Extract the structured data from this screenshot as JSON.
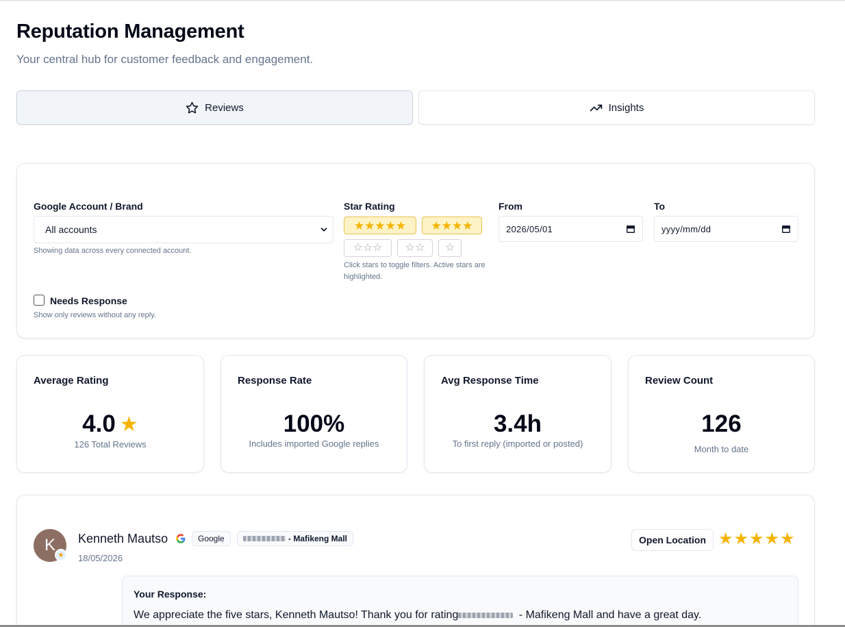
{
  "header": {
    "title": "Reputation Management",
    "subtitle": "Your central hub for customer feedback and engagement."
  },
  "tabs": [
    {
      "label": "Reviews",
      "icon": "star-outline-icon",
      "active": true
    },
    {
      "label": "Insights",
      "icon": "trending-up-icon",
      "active": false
    }
  ],
  "filters": {
    "account_label": "Google Account / Brand",
    "account_value": "All accounts",
    "account_help": "Showing data across every connected account.",
    "star_label": "Star Rating",
    "star_options": [
      {
        "stars": 5,
        "active": true
      },
      {
        "stars": 4,
        "active": true
      },
      {
        "stars": 3,
        "active": false
      },
      {
        "stars": 2,
        "active": false
      },
      {
        "stars": 1,
        "active": false
      }
    ],
    "star_help": "Click stars to toggle filters. Active stars are highlighted.",
    "from_label": "From",
    "from_value": "2026/05/01",
    "to_label": "To",
    "to_value": "yyyy/mm/dd",
    "needs_response_label": "Needs Response",
    "needs_response_checked": false,
    "needs_response_help": "Show only reviews without any reply."
  },
  "stats": [
    {
      "title": "Average Rating",
      "value": "4.0",
      "sub": "126 Total Reviews"
    },
    {
      "title": "Response Rate",
      "value": "100%",
      "sub": "Includes imported Google replies"
    },
    {
      "title": "Avg Response Time",
      "value": "3.4h",
      "sub": "To first reply (imported or posted)"
    },
    {
      "title": "Review Count",
      "value": "126",
      "sub": "Month to date"
    }
  ],
  "review": {
    "avatar_letter": "K",
    "name": "Kenneth Mautso",
    "source_badge": "Google",
    "location_badge": "- Mafikeng Mall",
    "date": "18/05/2026",
    "open_button": "Open Location",
    "rating": 5,
    "response_label": "Your Response:",
    "response_text_before": "We appreciate the five stars, Kenneth Mautso! Thank you for rating",
    "response_text_after": " - Mafikeng Mall and have a great day."
  },
  "colors": {
    "star_gold": "#f5b400",
    "active_chip_bg": "#fef3c7",
    "avatar_bg": "#8d6e63"
  }
}
